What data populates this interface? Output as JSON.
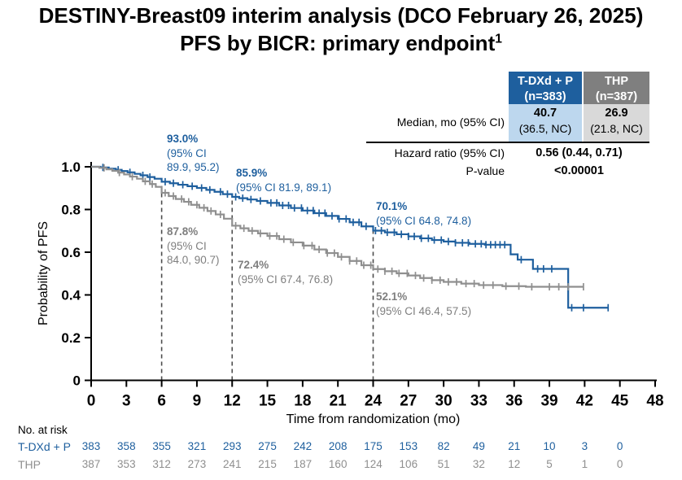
{
  "title": {
    "line1": "DESTINY-Breast09 interim analysis (DCO February 26, 2025)",
    "line2": "PFS by BICR: primary endpoint",
    "footnote_marker": "1"
  },
  "stats_table": {
    "columns": [
      {
        "line1": "T-DXd + P",
        "line2": "(n=383)"
      },
      {
        "line1": "THP",
        "line2": "(n=387)"
      }
    ],
    "median": {
      "label": "Median, mo (95% CI)",
      "tdxd_value": "40.7",
      "tdxd_ci": "(36.5, NC)",
      "thp_value": "26.9",
      "thp_ci": "(21.8, NC)"
    },
    "hazard": {
      "label": "Hazard ratio (95% CI)",
      "value": "0.56 (0.44, 0.71)"
    },
    "pvalue": {
      "label": "P-value",
      "value": "<0.00001"
    }
  },
  "colors": {
    "primary_blue": "#1e5f9e",
    "light_blue": "#bdd7ee",
    "header_gray": "#7f7f7f",
    "light_gray": "#d9d9d9",
    "curve_gray": "#8f8f8f",
    "reference_line": "#4d4d4d"
  },
  "chart_data": {
    "type": "line",
    "subtype": "kaplan-meier-step",
    "xlabel": "Time from randomization (mo)",
    "ylabel": "Probability of PFS",
    "xlim": [
      0,
      48
    ],
    "ylim": [
      0,
      1.0
    ],
    "xticks": [
      0,
      3,
      6,
      9,
      12,
      15,
      18,
      21,
      24,
      27,
      30,
      33,
      36,
      39,
      42,
      45,
      48
    ],
    "yticks": [
      {
        "value": 1.0,
        "label": "1.0"
      },
      {
        "value": 0.8,
        "label": "0.8"
      },
      {
        "value": 0.6,
        "label": "0.6"
      },
      {
        "value": 0.4,
        "label": "0.4"
      },
      {
        "value": 0.2,
        "label": "0.2"
      },
      {
        "value": 0.0,
        "label": "0"
      }
    ],
    "grid": false,
    "legend": "none",
    "reference_lines_x": [
      6,
      12,
      24
    ],
    "series": [
      {
        "id": "tdxd",
        "name": "T-DXd + P",
        "color": "#1e5f9e",
        "steps": [
          [
            0,
            1.0
          ],
          [
            0.8,
            0.997
          ],
          [
            1.5,
            0.991
          ],
          [
            2.1,
            0.986
          ],
          [
            2.6,
            0.98
          ],
          [
            3.1,
            0.974
          ],
          [
            3.7,
            0.967
          ],
          [
            4.2,
            0.96
          ],
          [
            4.8,
            0.952
          ],
          [
            5.4,
            0.944
          ],
          [
            6.0,
            0.93
          ],
          [
            6.7,
            0.923
          ],
          [
            7.4,
            0.916
          ],
          [
            8.2,
            0.909
          ],
          [
            9.0,
            0.901
          ],
          [
            9.8,
            0.892
          ],
          [
            10.5,
            0.883
          ],
          [
            11.2,
            0.872
          ],
          [
            12.0,
            0.859
          ],
          [
            12.6,
            0.853
          ],
          [
            13.3,
            0.847
          ],
          [
            14.1,
            0.84
          ],
          [
            15.0,
            0.831
          ],
          [
            16.0,
            0.819
          ],
          [
            17.0,
            0.807
          ],
          [
            18.0,
            0.795
          ],
          [
            19.0,
            0.783
          ],
          [
            20.0,
            0.77
          ],
          [
            21.0,
            0.756
          ],
          [
            22.0,
            0.74
          ],
          [
            23.0,
            0.721
          ],
          [
            24.0,
            0.701
          ],
          [
            25.0,
            0.693
          ],
          [
            26.0,
            0.684
          ],
          [
            27.0,
            0.674
          ],
          [
            28.0,
            0.665
          ],
          [
            29.0,
            0.657
          ],
          [
            30.0,
            0.65
          ],
          [
            31.0,
            0.644
          ],
          [
            32.2,
            0.639
          ],
          [
            33.5,
            0.635
          ],
          [
            35.7,
            0.59
          ],
          [
            36.3,
            0.565
          ],
          [
            37.6,
            0.522
          ],
          [
            40.6,
            0.34
          ]
        ],
        "censors": [
          1.0,
          2.3,
          3.3,
          4.4,
          5.0,
          6.3,
          7.0,
          7.8,
          8.6,
          9.4,
          10.1,
          11.0,
          11.6,
          12.3,
          12.9,
          13.6,
          14.4,
          15.3,
          15.8,
          16.3,
          16.8,
          17.3,
          17.9,
          18.4,
          18.9,
          19.4,
          19.9,
          20.5,
          21.1,
          21.7,
          22.3,
          22.8,
          23.4,
          24.2,
          24.7,
          25.2,
          25.8,
          26.4,
          27.0,
          27.5,
          28.1,
          28.7,
          29.2,
          29.8,
          30.4,
          31.0,
          31.6,
          32.1,
          32.7,
          33.2,
          33.6,
          34.0,
          34.4,
          34.8,
          35.2,
          36.6,
          38.0,
          38.5,
          39.2,
          40.9,
          41.9,
          44.0
        ],
        "end": 44.0,
        "landmarks": [
          {
            "month": 6,
            "value": "93.0%",
            "ci": "95% CI 89.9, 95.2"
          },
          {
            "month": 12,
            "value": "85.9%",
            "ci": "95% CI 81.9, 89.1"
          },
          {
            "month": 24,
            "value": "70.1%",
            "ci": "95% CI 64.8, 74.8"
          }
        ]
      },
      {
        "id": "thp",
        "name": "THP",
        "color": "#8f8f8f",
        "steps": [
          [
            0,
            1.0
          ],
          [
            0.7,
            0.995
          ],
          [
            1.3,
            0.988
          ],
          [
            1.8,
            0.981
          ],
          [
            2.3,
            0.973
          ],
          [
            2.8,
            0.964
          ],
          [
            3.3,
            0.954
          ],
          [
            3.9,
            0.944
          ],
          [
            4.4,
            0.932
          ],
          [
            5.0,
            0.919
          ],
          [
            5.5,
            0.906
          ],
          [
            6.0,
            0.878
          ],
          [
            6.6,
            0.863
          ],
          [
            7.2,
            0.849
          ],
          [
            7.9,
            0.836
          ],
          [
            8.5,
            0.822
          ],
          [
            9.2,
            0.808
          ],
          [
            9.9,
            0.793
          ],
          [
            10.6,
            0.777
          ],
          [
            11.3,
            0.757
          ],
          [
            12.0,
            0.724
          ],
          [
            12.7,
            0.712
          ],
          [
            13.4,
            0.7
          ],
          [
            14.2,
            0.688
          ],
          [
            15.0,
            0.676
          ],
          [
            16.0,
            0.661
          ],
          [
            17.0,
            0.646
          ],
          [
            18.0,
            0.631
          ],
          [
            19.0,
            0.613
          ],
          [
            20.0,
            0.596
          ],
          [
            21.0,
            0.578
          ],
          [
            22.0,
            0.559
          ],
          [
            23.0,
            0.539
          ],
          [
            24.0,
            0.521
          ],
          [
            25.0,
            0.511
          ],
          [
            26.0,
            0.501
          ],
          [
            27.0,
            0.491
          ],
          [
            28.0,
            0.479
          ],
          [
            29.0,
            0.469
          ],
          [
            30.0,
            0.461
          ],
          [
            31.5,
            0.453
          ],
          [
            33.0,
            0.446
          ],
          [
            35.0,
            0.441
          ],
          [
            37.0,
            0.438
          ]
        ],
        "censors": [
          1.1,
          2.4,
          3.5,
          4.6,
          5.2,
          6.3,
          7.0,
          7.7,
          8.3,
          9.0,
          9.6,
          10.2,
          11.0,
          12.3,
          13.0,
          13.7,
          14.4,
          15.2,
          15.8,
          16.4,
          17.2,
          18.1,
          18.8,
          19.4,
          20.1,
          20.7,
          21.3,
          22.0,
          22.6,
          23.2,
          23.8,
          24.4,
          25.0,
          25.6,
          26.2,
          26.9,
          27.6,
          28.3,
          29.0,
          29.7,
          30.4,
          31.1,
          31.9,
          32.6,
          33.4,
          34.2,
          35.3,
          36.4,
          37.5,
          39.0,
          39.8,
          40.6,
          41.9
        ],
        "end": 41.9,
        "landmarks": [
          {
            "month": 6,
            "value": "87.8%",
            "ci": "95% CI 84.0, 90.7"
          },
          {
            "month": 12,
            "value": "72.4%",
            "ci": "95% CI 67.4, 76.8"
          },
          {
            "month": 24,
            "value": "52.1%",
            "ci": "95% CI 46.4, 57.5"
          }
        ]
      }
    ],
    "annotations": [
      {
        "series_id": "tdxd",
        "at_month": 6,
        "lines": [
          "93.0%",
          "(95% CI",
          "89.9, 95.2)"
        ]
      },
      {
        "series_id": "tdxd",
        "at_month": 12,
        "lines": [
          "85.9%",
          "(95% CI 81.9, 89.1)"
        ]
      },
      {
        "series_id": "tdxd",
        "at_month": 24,
        "lines": [
          "70.1%",
          "(95% CI 64.8, 74.8)"
        ]
      },
      {
        "series_id": "thp",
        "at_month": 6,
        "lines": [
          "87.8%",
          "(95% CI",
          "84.0, 90.7)"
        ]
      },
      {
        "series_id": "thp",
        "at_month": 12,
        "lines": [
          "72.4%",
          "(95% CI 67.4, 76.8)"
        ]
      },
      {
        "series_id": "thp",
        "at_month": 24,
        "lines": [
          "52.1%",
          "(95% CI 46.4, 57.5)"
        ]
      }
    ]
  },
  "risk_table": {
    "title": "No. at risk",
    "times": [
      0,
      3,
      6,
      9,
      12,
      15,
      18,
      21,
      24,
      27,
      30,
      33,
      36,
      39,
      42,
      45
    ],
    "rows": [
      {
        "id": "tdxd",
        "label": "T-DXd + P",
        "color": "#1e5f9e",
        "values": [
          383,
          358,
          355,
          321,
          293,
          275,
          242,
          208,
          175,
          153,
          82,
          49,
          21,
          10,
          3,
          0
        ]
      },
      {
        "id": "thp",
        "label": "THP",
        "color": "#8f8f8f",
        "values": [
          387,
          353,
          312,
          273,
          241,
          215,
          187,
          160,
          124,
          106,
          51,
          32,
          12,
          5,
          1,
          0
        ]
      }
    ]
  }
}
